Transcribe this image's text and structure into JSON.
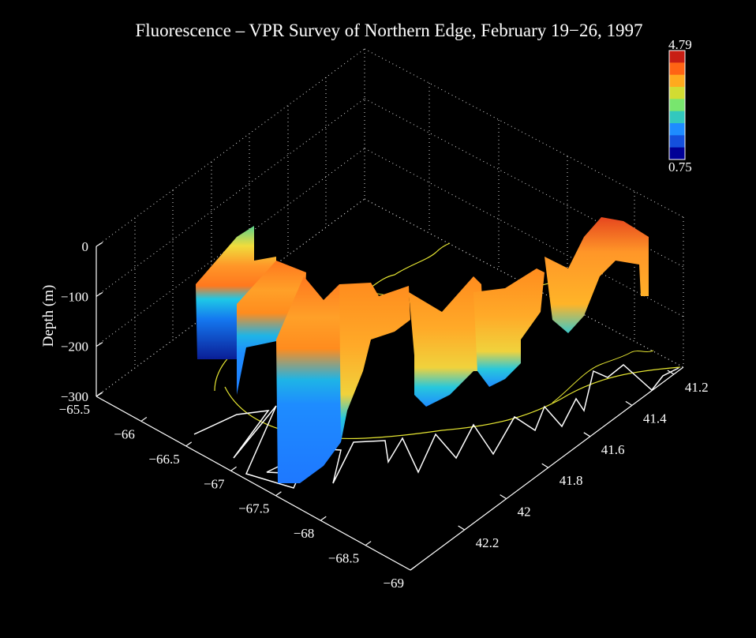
{
  "chart_data": {
    "type": "3d-surface-curtain",
    "title": "Fluorescence  – VPR Survey of Northern Edge, February 19−26, 1997",
    "zlabel": "Depth (m)",
    "x_axis": {
      "ticks": [
        "−65.5",
        "−66",
        "−66.5",
        "−67",
        "−67.5",
        "−68",
        "−68.5",
        "−69"
      ],
      "values": [
        -65.5,
        -66,
        -66.5,
        -67,
        -67.5,
        -68,
        -68.5,
        -69
      ]
    },
    "y_axis": {
      "ticks": [
        "41.2",
        "41.4",
        "41.6",
        "41.8",
        "42",
        "42.2"
      ],
      "values": [
        41.2,
        41.4,
        41.6,
        41.8,
        42,
        42.2
      ]
    },
    "z_axis": {
      "ticks": [
        "0",
        "−100",
        "−200",
        "−300"
      ],
      "values": [
        0,
        -100,
        -200,
        -300
      ]
    },
    "colorbar": {
      "max_label": "4.79",
      "min_label": "0.75",
      "min": 0.75,
      "max": 4.79,
      "colors": [
        "#c81e14",
        "#ff6414",
        "#ffaa1e",
        "#d2dc32",
        "#78e66e",
        "#32c8be",
        "#1e8cff",
        "#1450dc",
        "#000096"
      ]
    },
    "grid": true,
    "background": "#000000"
  }
}
